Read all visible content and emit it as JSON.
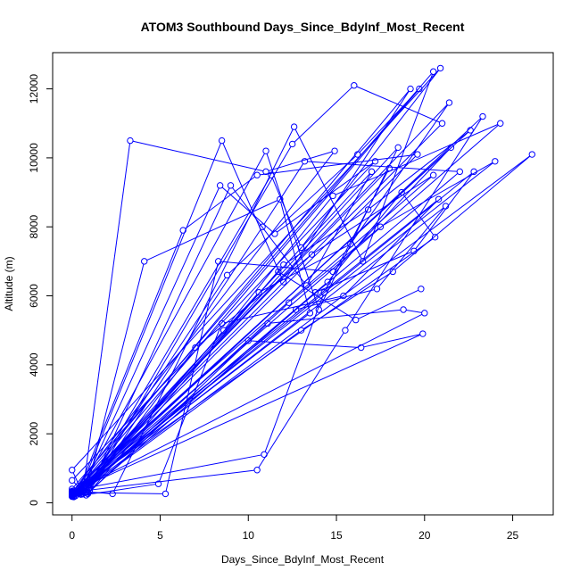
{
  "chart_data": {
    "type": "scatter",
    "title": "ATOM3 Southbound Days_Since_BdyInf_Most_Recent",
    "xlabel": "Days_Since_BdyInf_Most_Recent",
    "ylabel": "Altitude (m)",
    "xlim": [
      -1.1,
      27.3
    ],
    "ylim": [
      -350,
      13050
    ],
    "xticks": [
      0,
      5,
      10,
      15,
      20,
      25
    ],
    "yticks": [
      0,
      2000,
      4000,
      6000,
      8000,
      10000,
      12000
    ],
    "color": "#0000ff",
    "line_style": "lines connect consecutive points (type 'o')",
    "points": [
      [
        0.0,
        180
      ],
      [
        0.8,
        320
      ],
      [
        4.1,
        7000
      ],
      [
        11.8,
        8800
      ],
      [
        13.5,
        5500
      ],
      [
        0.0,
        220
      ],
      [
        1.0,
        420
      ],
      [
        9.0,
        9200
      ],
      [
        13.3,
        6300
      ],
      [
        17.0,
        9600
      ],
      [
        0.1,
        260
      ],
      [
        0.6,
        260
      ],
      [
        3.3,
        10500
      ],
      [
        11.0,
        9600
      ],
      [
        14.9,
        10200
      ],
      [
        0.0,
        300
      ],
      [
        0.4,
        300
      ],
      [
        8.5,
        10500
      ],
      [
        12.0,
        6400
      ],
      [
        19.2,
        12000
      ],
      [
        0.1,
        350
      ],
      [
        2.3,
        260
      ],
      [
        12.6,
        10900
      ],
      [
        16.5,
        7000
      ],
      [
        20.5,
        12500
      ],
      [
        0.0,
        400
      ],
      [
        0.5,
        350
      ],
      [
        8.4,
        9200
      ],
      [
        11.5,
        7800
      ],
      [
        17.2,
        9900
      ],
      [
        0.0,
        650
      ],
      [
        0.7,
        300
      ],
      [
        11.3,
        9500
      ],
      [
        13.0,
        7400
      ],
      [
        20.9,
        12600
      ],
      [
        0.0,
        950
      ],
      [
        0.5,
        400
      ],
      [
        11.0,
        10200
      ],
      [
        14.0,
        5600
      ],
      [
        18.5,
        10300
      ],
      [
        0.2,
        200
      ],
      [
        0.9,
        300
      ],
      [
        12.5,
        10400
      ],
      [
        16.0,
        12100
      ],
      [
        21.0,
        11000
      ],
      [
        0.0,
        250
      ],
      [
        0.3,
        280
      ],
      [
        6.3,
        7900
      ],
      [
        10.5,
        9500
      ],
      [
        19.6,
        10100
      ],
      [
        0.0,
        200
      ],
      [
        1.0,
        350
      ],
      [
        10.8,
        8000
      ],
      [
        13.2,
        9900
      ],
      [
        22.0,
        9600
      ],
      [
        0.1,
        180
      ],
      [
        4.9,
        550
      ],
      [
        8.5,
        5200
      ],
      [
        15.4,
        6000
      ],
      [
        20.8,
        8800
      ],
      [
        0.0,
        300
      ],
      [
        5.3,
        260
      ],
      [
        8.3,
        7000
      ],
      [
        14.8,
        6700
      ],
      [
        21.5,
        10300
      ],
      [
        0.1,
        250
      ],
      [
        0.6,
        300
      ],
      [
        8.8,
        6600
      ],
      [
        16.2,
        10100
      ],
      [
        19.7,
        12000
      ],
      [
        0.0,
        220
      ],
      [
        0.5,
        400
      ],
      [
        10.9,
        1400
      ],
      [
        14.3,
        6100
      ],
      [
        18.0,
        9700
      ],
      [
        0.0,
        270
      ],
      [
        0.7,
        350
      ],
      [
        10.5,
        950
      ],
      [
        15.5,
        5000
      ],
      [
        23.3,
        11200
      ],
      [
        0.1,
        190
      ],
      [
        0.8,
        300
      ],
      [
        7.0,
        4500
      ],
      [
        13.6,
        7200
      ],
      [
        20.5,
        9500
      ],
      [
        0.0,
        340
      ],
      [
        0.6,
        250
      ],
      [
        8.6,
        5000
      ],
      [
        14.8,
        8900
      ],
      [
        24.3,
        11000
      ],
      [
        0.0,
        210
      ],
      [
        0.4,
        310
      ],
      [
        10.6,
        6100
      ],
      [
        15.8,
        7500
      ],
      [
        21.4,
        11600
      ],
      [
        0.1,
        280
      ],
      [
        0.9,
        260
      ],
      [
        12.0,
        6900
      ],
      [
        16.8,
        8500
      ],
      [
        22.6,
        10800
      ],
      [
        0.0,
        240
      ],
      [
        0.6,
        330
      ],
      [
        10.0,
        4700
      ],
      [
        16.4,
        4500
      ],
      [
        19.9,
        4900
      ],
      [
        0.0,
        320
      ],
      [
        0.5,
        290
      ],
      [
        13.0,
        5000
      ],
      [
        18.2,
        6700
      ],
      [
        26.1,
        10100
      ],
      [
        0.1,
        170
      ],
      [
        0.7,
        350
      ],
      [
        12.3,
        5800
      ],
      [
        17.5,
        8000
      ],
      [
        24.0,
        9900
      ],
      [
        0.0,
        260
      ],
      [
        0.8,
        220
      ],
      [
        11.1,
        5200
      ],
      [
        18.8,
        5600
      ],
      [
        20.0,
        5500
      ],
      [
        0.0,
        300
      ],
      [
        0.4,
        260
      ],
      [
        13.8,
        6100
      ],
      [
        19.4,
        7300
      ],
      [
        22.8,
        9600
      ],
      [
        0.1,
        230
      ],
      [
        0.9,
        300
      ],
      [
        12.7,
        5600
      ],
      [
        17.3,
        6200
      ],
      [
        21.2,
        8600
      ],
      [
        0.0,
        190
      ],
      [
        0.6,
        350
      ],
      [
        14.5,
        6400
      ],
      [
        18.7,
        9000
      ],
      [
        20.6,
        7700
      ],
      [
        0.0,
        280
      ],
      [
        0.5,
        240
      ],
      [
        11.7,
        6700
      ],
      [
        16.1,
        5300
      ],
      [
        19.8,
        6200
      ]
    ]
  }
}
